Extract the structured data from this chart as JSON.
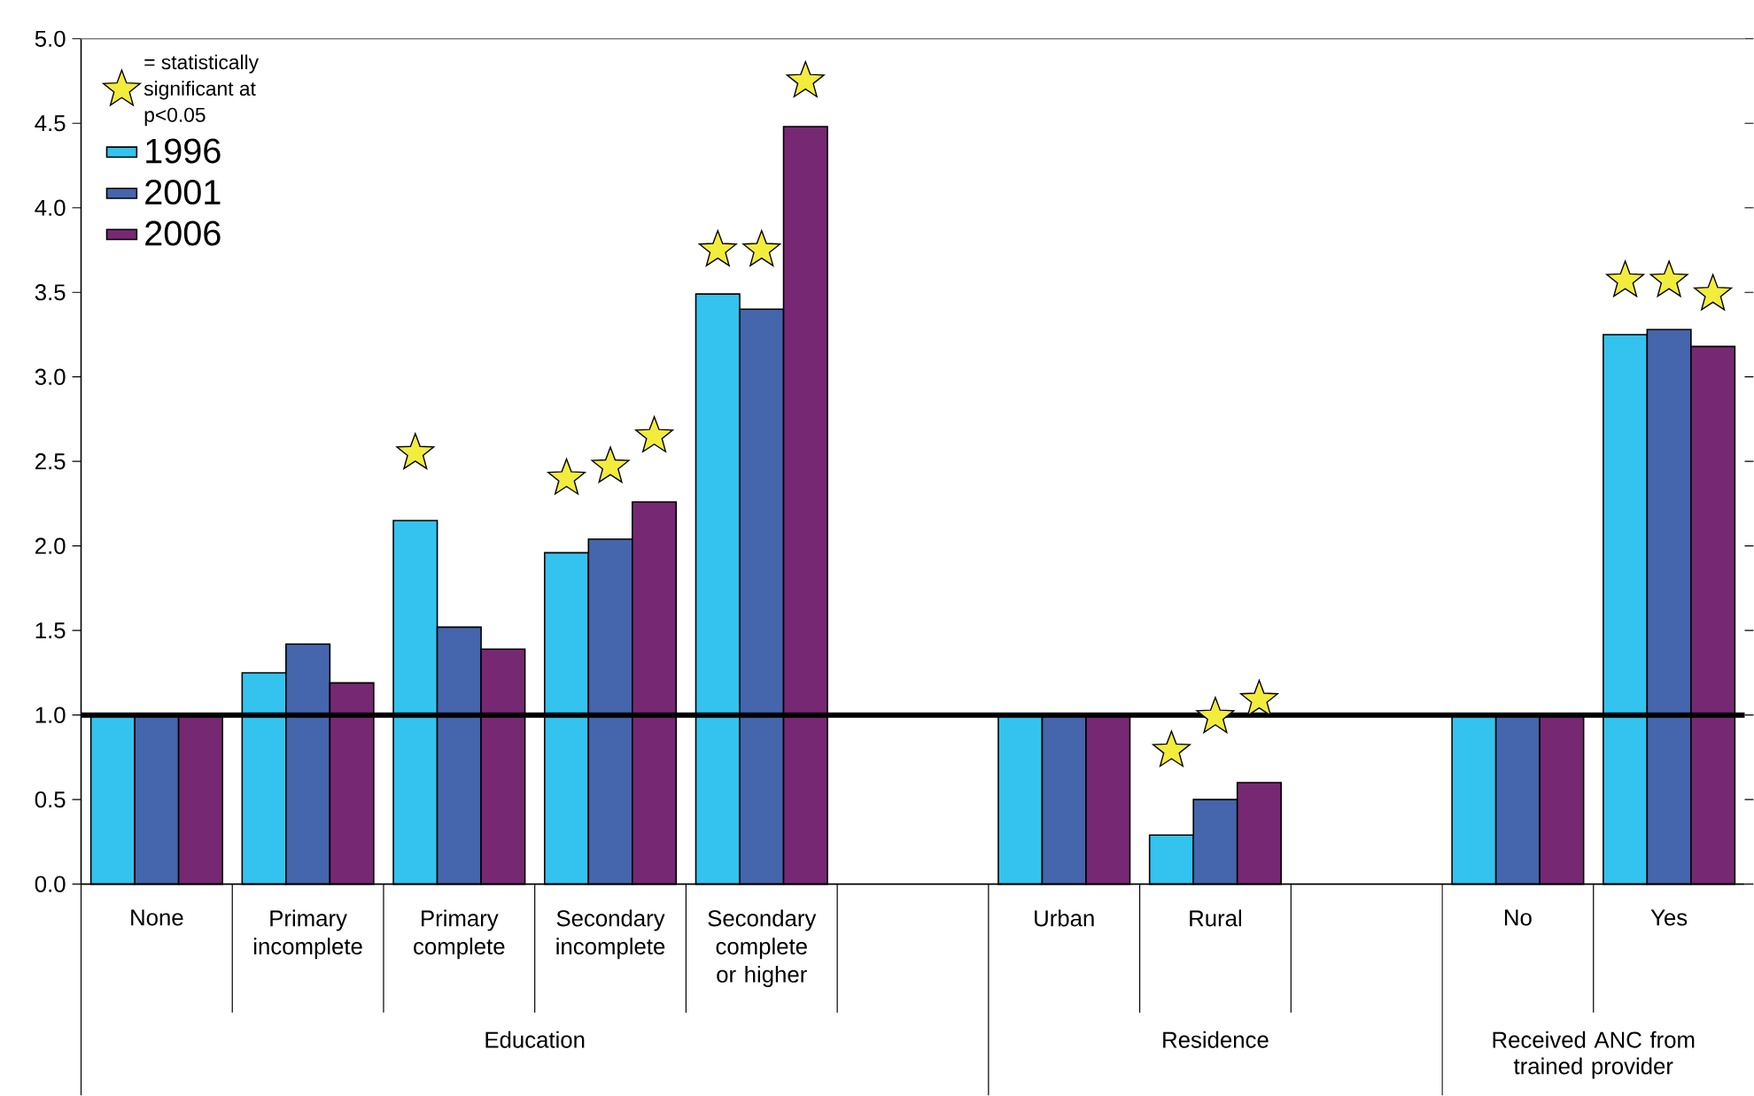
{
  "chart_data": {
    "type": "bar",
    "categories": [
      "None",
      "Primary incomplete",
      "Primary complete",
      "Secondary incomplete",
      "Secondary complete or higher",
      null,
      "Urban",
      "Rural",
      null,
      "No",
      "Yes"
    ],
    "series": [
      {
        "name": "1996",
        "color": "#33c3ee",
        "values": [
          1,
          1.25,
          2.15,
          1.96,
          3.49,
          null,
          1,
          0.29,
          null,
          1,
          3.25
        ]
      },
      {
        "name": "2001",
        "color": "#4565ad",
        "values": [
          1,
          1.42,
          1.52,
          2.04,
          3.4,
          null,
          1,
          0.5,
          null,
          1,
          3.28
        ]
      },
      {
        "name": "2006",
        "color": "#772873",
        "values": [
          1,
          1.19,
          1.39,
          2.26,
          4.48,
          null,
          1,
          0.6,
          null,
          1,
          3.18
        ]
      },
      {
        "name": "= statistically significant at p<0.05",
        "type": "scatter",
        "marker": "star",
        "color": "#f2ec3c",
        "values": [
          null,
          null,
          2.55,
          2.4,
          3.75,
          null,
          null,
          0.79,
          null,
          null,
          3.57
        ]
      },
      {
        "type": "scatter",
        "marker": "star",
        "color": "#f2ec3c",
        "values": [
          null,
          null,
          null,
          2.47,
          3.75,
          null,
          null,
          0.99,
          null,
          null,
          3.57
        ]
      },
      {
        "type": "scatter",
        "marker": "star",
        "color": "#f2ec3c",
        "values": [
          null,
          null,
          null,
          2.65,
          4.75,
          null,
          null,
          1.09,
          null,
          null,
          3.49
        ]
      }
    ],
    "ylim": [
      0,
      5
    ],
    "yticks": [
      {
        "value": 0,
        "label": "0.0"
      },
      {
        "value": 0.5,
        "label": "0.5"
      },
      {
        "value": 1,
        "label": "1.0"
      },
      {
        "value": 1.5,
        "label": "1.5"
      },
      {
        "value": 2,
        "label": "2.0"
      },
      {
        "value": 2.5,
        "label": "2.5"
      },
      {
        "value": 3,
        "label": "3.0"
      },
      {
        "value": 3.5,
        "label": "3.5"
      },
      {
        "value": 4,
        "label": "4.0"
      },
      {
        "value": 4.5,
        "label": "4.5"
      },
      {
        "value": 5,
        "label": "5.0"
      }
    ],
    "ref_lines": [
      {
        "axis": "y",
        "value": 1
      }
    ],
    "annotations": [
      "Education",
      "Residence",
      "Received ANC from trained provider"
    ],
    "legend": "top left"
  }
}
